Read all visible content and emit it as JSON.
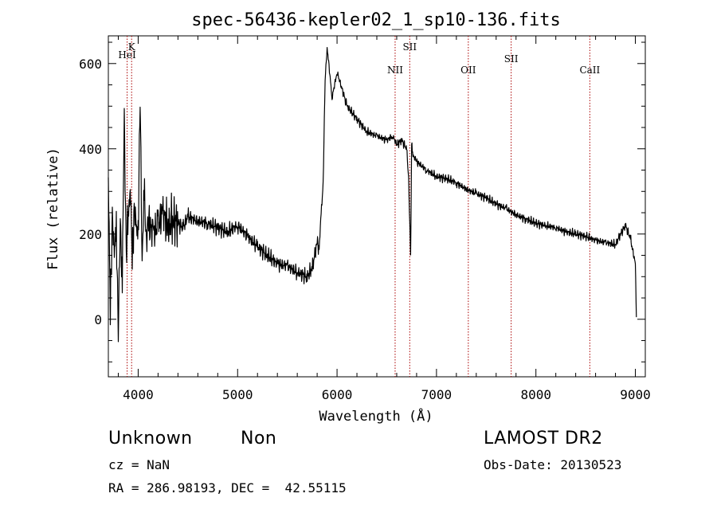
{
  "chart_data": {
    "type": "line",
    "title": "spec-56436-kepler02_1_sp10-136.fits",
    "xlabel": "Wavelength (Å)",
    "ylabel": "Flux (relative)",
    "xlim": [
      3700,
      9100
    ],
    "ylim": [
      -135,
      665
    ],
    "xticks": [
      4000,
      5000,
      6000,
      7000,
      8000,
      9000
    ],
    "yticks": [
      0,
      200,
      400,
      600
    ],
    "grid": false,
    "line_color": "#000000",
    "marker_color": "#aa0000",
    "series": [
      {
        "x": [
          3700,
          3720,
          3740,
          3760,
          3780,
          3800,
          3820,
          3840,
          3860,
          3880,
          3900,
          3920,
          3940,
          3960,
          3980,
          4000,
          4020,
          4040,
          4060,
          4080,
          4100,
          4150,
          4200,
          4250,
          4300,
          4350,
          4400,
          4450,
          4500,
          4600,
          4700,
          4800,
          4900,
          5000,
          5100,
          5200,
          5300,
          5400,
          5500,
          5600,
          5700,
          5750,
          5800,
          5820,
          5840,
          5860,
          5880,
          5900,
          5950,
          6000,
          6100,
          6200,
          6300,
          6400,
          6500,
          6560,
          6600,
          6650,
          6700,
          6720,
          6740,
          6750,
          6760,
          6780,
          6800,
          6900,
          7000,
          7100,
          7200,
          7300,
          7400,
          7500,
          7600,
          7700,
          7800,
          7900,
          8000,
          8100,
          8200,
          8300,
          8400,
          8500,
          8600,
          8700,
          8800,
          8850,
          8900,
          8950,
          9000,
          9010
        ],
        "y": [
          360,
          0,
          260,
          130,
          230,
          -30,
          240,
          90,
          460,
          160,
          230,
          340,
          120,
          280,
          190,
          220,
          510,
          150,
          300,
          180,
          230,
          200,
          220,
          250,
          215,
          235,
          225,
          215,
          240,
          230,
          225,
          215,
          205,
          220,
          195,
          170,
          150,
          130,
          125,
          110,
          100,
          120,
          180,
          170,
          240,
          320,
          560,
          640,
          520,
          580,
          500,
          470,
          440,
          430,
          420,
          430,
          410,
          420,
          400,
          330,
          150,
          410,
          390,
          380,
          370,
          350,
          335,
          330,
          320,
          305,
          295,
          285,
          270,
          260,
          245,
          235,
          225,
          220,
          215,
          205,
          200,
          195,
          185,
          180,
          175,
          200,
          220,
          190,
          130,
          5
        ]
      }
    ],
    "annotations": [
      {
        "label": "K",
        "x": 3934
      },
      {
        "label": "HeI",
        "x": 3889
      },
      {
        "label": "NII",
        "x": 6584
      },
      {
        "label": "SII",
        "x": 6731
      },
      {
        "label": "OII",
        "x": 7320
      },
      {
        "label": "SII",
        "x": 7751
      },
      {
        "label": "CaII",
        "x": 8542
      }
    ]
  },
  "footer": {
    "object_class": "Unknown",
    "subclass": "Non",
    "survey": "LAMOST DR2",
    "redshift": "cz = NaN",
    "obs_date": "Obs-Date: 20130523",
    "coordinates": "RA = 286.98193, DEC =  42.55115"
  }
}
